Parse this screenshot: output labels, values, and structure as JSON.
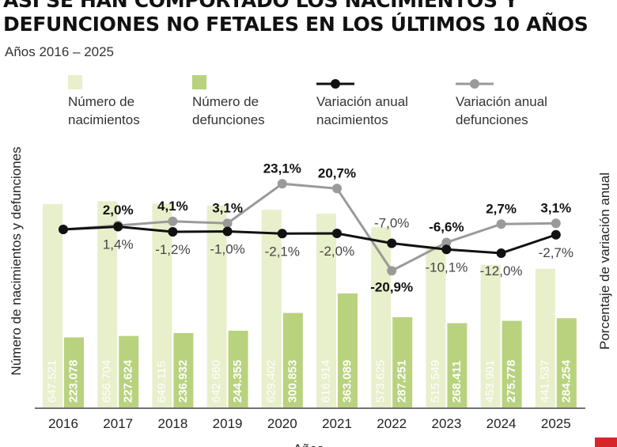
{
  "title_lines": [
    "ASÍ SE HAN COMPORTADO LOS NACIMIENTOS Y",
    "DEFUNCIONES NO FETALES EN LOS ÚLTIMOS 10 AÑOS"
  ],
  "subtitle": "Años 2016 – 2025",
  "legend": [
    {
      "label": "Número de\nnacimientos"
    },
    {
      "label": "Número de\ndefunciones"
    },
    {
      "label": "Variación anual\nnacimientos"
    },
    {
      "label": "Variación anual\ndefunciones"
    }
  ],
  "colors": {
    "births_bar": "#e8efcb",
    "deaths_bar": "#b9d27e",
    "births_line": "#111111",
    "deaths_line": "#9a9a9a",
    "axis": "#444444",
    "corner": "#d7262a"
  },
  "chart_data": {
    "type": "bar",
    "categories": [
      "2016",
      "2017",
      "2018",
      "2019",
      "2020",
      "2021",
      "2022",
      "2023",
      "2024",
      "2025"
    ],
    "series": [
      {
        "name": "Número de nacimientos",
        "type": "bar",
        "values": [
          647521,
          656704,
          649115,
          642660,
          629402,
          616914,
          573625,
          515549,
          453901,
          441537
        ],
        "labels": [
          "647.521",
          "656.704",
          "649.115",
          "642.660",
          "629.402",
          "616.914",
          "573.625",
          "515.549",
          "453.901",
          "441.537"
        ]
      },
      {
        "name": "Número de defunciones",
        "type": "bar",
        "values": [
          223078,
          227624,
          236932,
          244355,
          300853,
          363089,
          287251,
          268411,
          275778,
          284254
        ],
        "labels": [
          "223.078",
          "227.624",
          "236.932",
          "244.355",
          "300.853",
          "363.089",
          "287.251",
          "268.411",
          "275.778",
          "284.254"
        ]
      },
      {
        "name": "Variación anual nacimientos",
        "type": "line",
        "values": [
          null,
          1.4,
          -1.2,
          -1.0,
          -2.1,
          -2.0,
          -7.0,
          -10.1,
          -12.0,
          -2.7
        ],
        "labels": [
          "",
          "1,4%",
          "-1,2%",
          "-1,0%",
          "-2,1%",
          "-2,0%",
          "-7,0%",
          "-10,1%",
          "-12,0%",
          "-2,7%"
        ]
      },
      {
        "name": "Variación anual defunciones",
        "type": "line",
        "values": [
          null,
          2.0,
          4.1,
          3.1,
          23.1,
          20.7,
          -20.9,
          -6.6,
          2.7,
          3.1
        ],
        "labels": [
          "",
          "2,0%",
          "4,1%",
          "3,1%",
          "23,1%",
          "20,7%",
          "-20,9%",
          "-6,6%",
          "2,7%",
          "3,1%"
        ]
      }
    ],
    "xlabel": "Años",
    "ylabel_left": "Número de nacimientos y defunciones",
    "ylabel_right": "Porcentaje de variación anual",
    "ylim_left": [
      0,
      800000
    ],
    "ylim_right": [
      -35,
      40
    ],
    "grid": false
  }
}
